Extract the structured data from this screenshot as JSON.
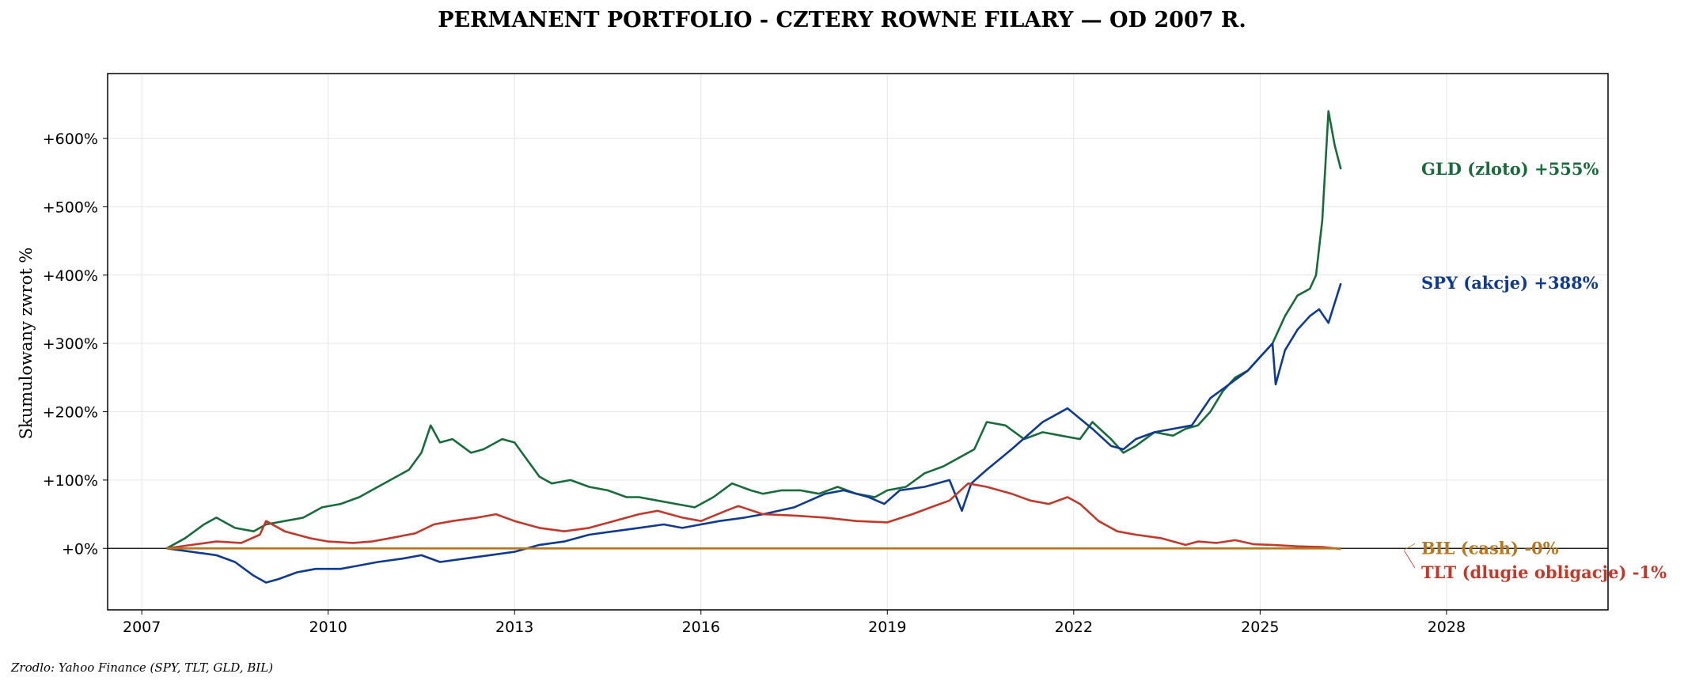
{
  "chart_data": {
    "type": "line",
    "title": "PERMANENT PORTFOLIO - CZTERY ROWNE FILARY — OD 2007 R.",
    "xlabel": "",
    "ylabel": "Skumulowany zwrot %",
    "xlim": [
      2006.45,
      2030.6
    ],
    "ylim": [
      -90,
      695
    ],
    "x_ticks": [
      2007,
      2010,
      2013,
      2016,
      2019,
      2022,
      2025,
      2028
    ],
    "x_tick_labels": [
      "2007",
      "2010",
      "2013",
      "2016",
      "2019",
      "2022",
      "2025",
      "2028"
    ],
    "y_ticks": [
      0,
      100,
      200,
      300,
      400,
      500,
      600
    ],
    "y_tick_labels": [
      "+0%",
      "+100%",
      "+200%",
      "+300%",
      "+400%",
      "+500%",
      "+600%"
    ],
    "grid": true,
    "zero_line": true,
    "source": "Zrodlo: Yahoo Finance (SPY, TLT, GLD, BIL)",
    "series": [
      {
        "name": "GLD (zloto)",
        "end_label": "GLD (zloto)  +555%",
        "color": "#1a6b3c",
        "x": [
          2007.4,
          2007.7,
          2008.0,
          2008.2,
          2008.5,
          2008.8,
          2009.0,
          2009.3,
          2009.6,
          2009.9,
          2010.2,
          2010.5,
          2010.8,
          2011.0,
          2011.3,
          2011.5,
          2011.65,
          2011.8,
          2012.0,
          2012.3,
          2012.5,
          2012.8,
          2013.0,
          2013.2,
          2013.4,
          2013.6,
          2013.9,
          2014.2,
          2014.5,
          2014.8,
          2015.0,
          2015.3,
          2015.6,
          2015.9,
          2016.2,
          2016.5,
          2016.8,
          2017.0,
          2017.3,
          2017.6,
          2017.9,
          2018.2,
          2018.5,
          2018.8,
          2019.0,
          2019.3,
          2019.6,
          2019.9,
          2020.2,
          2020.4,
          2020.6,
          2020.9,
          2021.2,
          2021.5,
          2021.8,
          2022.1,
          2022.3,
          2022.6,
          2022.8,
          2023.0,
          2023.3,
          2023.6,
          2023.8,
          2024.0,
          2024.2,
          2024.4,
          2024.6,
          2024.8,
          2025.0,
          2025.2,
          2025.4,
          2025.6,
          2025.8,
          2025.9,
          2026.0,
          2026.1,
          2026.2,
          2026.3
        ],
        "y": [
          0,
          15,
          35,
          45,
          30,
          25,
          35,
          40,
          45,
          60,
          65,
          75,
          90,
          100,
          115,
          140,
          180,
          155,
          160,
          140,
          145,
          160,
          155,
          130,
          105,
          95,
          100,
          90,
          85,
          75,
          75,
          70,
          65,
          60,
          75,
          95,
          85,
          80,
          85,
          85,
          80,
          90,
          80,
          75,
          85,
          90,
          110,
          120,
          135,
          145,
          185,
          180,
          160,
          170,
          165,
          160,
          185,
          160,
          140,
          150,
          170,
          165,
          175,
          180,
          200,
          230,
          250,
          260,
          280,
          300,
          340,
          370,
          380,
          400,
          480,
          640,
          590,
          555
        ]
      },
      {
        "name": "SPY (akcje)",
        "end_label": "SPY (akcje)  +388%",
        "color": "#0f3a8f",
        "x": [
          2007.4,
          2007.8,
          2008.2,
          2008.5,
          2008.8,
          2009.0,
          2009.2,
          2009.5,
          2009.8,
          2010.2,
          2010.5,
          2010.8,
          2011.2,
          2011.5,
          2011.8,
          2012.2,
          2012.6,
          2013.0,
          2013.4,
          2013.8,
          2014.2,
          2014.6,
          2015.0,
          2015.4,
          2015.7,
          2016.0,
          2016.3,
          2016.7,
          2017.0,
          2017.5,
          2018.0,
          2018.3,
          2018.7,
          2018.95,
          2019.2,
          2019.6,
          2020.0,
          2020.2,
          2020.35,
          2020.6,
          2021.0,
          2021.5,
          2021.9,
          2022.3,
          2022.6,
          2022.8,
          2023.0,
          2023.3,
          2023.6,
          2023.9,
          2024.2,
          2024.5,
          2024.8,
          2025.0,
          2025.2,
          2025.25,
          2025.4,
          2025.6,
          2025.8,
          2025.95,
          2026.1,
          2026.3
        ],
        "y": [
          0,
          -5,
          -10,
          -20,
          -40,
          -50,
          -45,
          -35,
          -30,
          -30,
          -25,
          -20,
          -15,
          -10,
          -20,
          -15,
          -10,
          -5,
          5,
          10,
          20,
          25,
          30,
          35,
          30,
          35,
          40,
          45,
          50,
          60,
          80,
          85,
          75,
          65,
          85,
          90,
          100,
          55,
          95,
          115,
          145,
          185,
          205,
          175,
          150,
          145,
          160,
          170,
          175,
          180,
          220,
          240,
          260,
          280,
          300,
          240,
          290,
          320,
          340,
          350,
          330,
          388
        ]
      },
      {
        "name": "TLT (dlugie obligacje)",
        "end_label": "TLT (dlugie obligacje)  -1%",
        "color": "#c0392b",
        "x": [
          2007.4,
          2007.8,
          2008.2,
          2008.6,
          2008.9,
          2009.0,
          2009.3,
          2009.7,
          2010.0,
          2010.4,
          2010.7,
          2011.0,
          2011.4,
          2011.7,
          2012.0,
          2012.4,
          2012.7,
          2013.0,
          2013.4,
          2013.8,
          2014.2,
          2014.6,
          2015.0,
          2015.3,
          2015.7,
          2016.0,
          2016.4,
          2016.6,
          2017.0,
          2017.5,
          2018.0,
          2018.5,
          2019.0,
          2019.4,
          2019.7,
          2020.0,
          2020.3,
          2020.6,
          2021.0,
          2021.3,
          2021.6,
          2021.9,
          2022.1,
          2022.4,
          2022.7,
          2023.0,
          2023.4,
          2023.8,
          2024.0,
          2024.3,
          2024.6,
          2024.9,
          2025.2,
          2025.6,
          2026.0,
          2026.3
        ],
        "y": [
          0,
          5,
          10,
          8,
          20,
          40,
          25,
          15,
          10,
          8,
          10,
          15,
          22,
          35,
          40,
          45,
          50,
          40,
          30,
          25,
          30,
          40,
          50,
          55,
          45,
          40,
          55,
          62,
          50,
          48,
          45,
          40,
          38,
          50,
          60,
          70,
          95,
          90,
          80,
          70,
          65,
          75,
          65,
          40,
          25,
          20,
          15,
          5,
          10,
          8,
          12,
          6,
          5,
          3,
          2,
          -1
        ]
      },
      {
        "name": "BIL (cash)",
        "end_label": "BIL (cash)  -0%",
        "color": "#b8761f",
        "x": [
          2007.4,
          2026.3
        ],
        "y": [
          0,
          0
        ]
      }
    ]
  }
}
